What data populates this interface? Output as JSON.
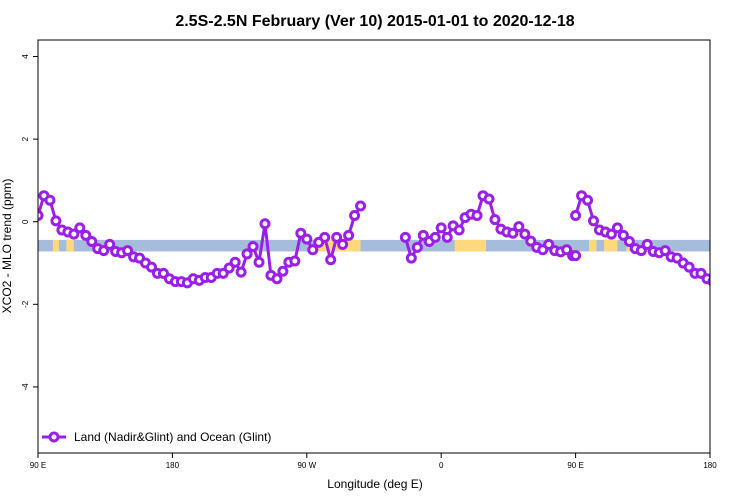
{
  "chart_data": {
    "type": "line",
    "title": "2.5S-2.5N February (Ver 10)   2015-01-01 to 2020-12-18",
    "xlabel": "Longitude (deg E)",
    "ylabel": "XCO2 - MLO trend (ppm)",
    "xlim": [
      90,
      450
    ],
    "ylim": [
      -5.6,
      4.4
    ],
    "x_ticks": [
      {
        "value": 90,
        "label": "90 E"
      },
      {
        "value": 180,
        "label": "180"
      },
      {
        "value": 270,
        "label": "90 W"
      },
      {
        "value": 360,
        "label": "0"
      },
      {
        "value": 450,
        "label": "90 E"
      },
      {
        "value": 540,
        "label": "180"
      }
    ],
    "y_ticks": [
      {
        "value": 4,
        "label": "4"
      },
      {
        "value": 2,
        "label": "2"
      },
      {
        "value": 0,
        "label": "0"
      },
      {
        "value": -2,
        "label": "-2"
      },
      {
        "value": -4,
        "label": "-4"
      }
    ],
    "x_range_display": [
      90,
      540
    ],
    "band": {
      "y_range": [
        -0.72,
        -0.44
      ],
      "ocean_color": "#a5bcdc",
      "land_color": "#fdd97c",
      "land_segments": [
        [
          100,
          104
        ],
        [
          109,
          114
        ],
        [
          276,
          306
        ],
        [
          369,
          390
        ],
        [
          459,
          463
        ],
        [
          472,
          478
        ],
        [
          484,
          486
        ]
      ]
    },
    "series": [
      {
        "name": "Land (Nadir&Glint) and Ocean (Glint)",
        "color": "#9b1fe8",
        "segments": [
          [
            [
              90,
              0.15
            ],
            [
              94,
              0.63
            ],
            [
              98,
              0.52
            ],
            [
              102,
              0.02
            ],
            [
              106,
              -0.2
            ],
            [
              110,
              -0.25
            ],
            [
              114,
              -0.3
            ],
            [
              118,
              -0.15
            ],
            [
              122,
              -0.33
            ],
            [
              126,
              -0.48
            ],
            [
              130,
              -0.65
            ],
            [
              134,
              -0.7
            ],
            [
              138,
              -0.55
            ],
            [
              142,
              -0.72
            ],
            [
              146,
              -0.75
            ],
            [
              150,
              -0.7
            ],
            [
              154,
              -0.85
            ],
            [
              158,
              -0.88
            ],
            [
              162,
              -1.0
            ],
            [
              166,
              -1.1
            ],
            [
              170,
              -1.25
            ],
            [
              174,
              -1.25
            ],
            [
              178,
              -1.38
            ],
            [
              182,
              -1.45
            ],
            [
              186,
              -1.45
            ],
            [
              190,
              -1.48
            ],
            [
              194,
              -1.38
            ],
            [
              198,
              -1.42
            ],
            [
              202,
              -1.35
            ],
            [
              206,
              -1.35
            ],
            [
              210,
              -1.25
            ],
            [
              214,
              -1.25
            ],
            [
              218,
              -1.12
            ],
            [
              222,
              -0.98
            ],
            [
              226,
              -1.22
            ],
            [
              230,
              -0.78
            ],
            [
              234,
              -0.6
            ],
            [
              238,
              -0.98
            ],
            [
              242,
              -0.05
            ],
            [
              246,
              -1.3
            ],
            [
              250,
              -1.38
            ],
            [
              254,
              -1.2
            ],
            [
              258,
              -0.98
            ],
            [
              262,
              -0.95
            ],
            [
              266,
              -0.28
            ],
            [
              270,
              -0.42
            ],
            [
              274,
              -0.68
            ],
            [
              278,
              -0.5
            ],
            [
              282,
              -0.38
            ],
            [
              286,
              -0.92
            ],
            [
              290,
              -0.38
            ],
            [
              294,
              -0.55
            ],
            [
              298,
              -0.33
            ],
            [
              302,
              0.15
            ],
            [
              306,
              0.38
            ]
          ],
          [
            [
              336,
              -0.38
            ],
            [
              340,
              -0.88
            ],
            [
              344,
              -0.62
            ],
            [
              348,
              -0.33
            ],
            [
              352,
              -0.48
            ],
            [
              356,
              -0.38
            ],
            [
              360,
              -0.15
            ],
            [
              364,
              -0.38
            ],
            [
              368,
              -0.1
            ],
            [
              372,
              -0.2
            ],
            [
              376,
              0.1
            ],
            [
              380,
              0.18
            ],
            [
              384,
              0.15
            ],
            [
              388,
              0.63
            ],
            [
              392,
              0.55
            ],
            [
              396,
              0.05
            ],
            [
              400,
              -0.18
            ],
            [
              404,
              -0.25
            ],
            [
              408,
              -0.28
            ],
            [
              412,
              -0.12
            ],
            [
              416,
              -0.3
            ],
            [
              420,
              -0.47
            ],
            [
              424,
              -0.62
            ],
            [
              428,
              -0.68
            ],
            [
              432,
              -0.55
            ],
            [
              436,
              -0.7
            ],
            [
              440,
              -0.73
            ],
            [
              444,
              -0.68
            ],
            [
              448,
              -0.82
            ],
            [
              450,
              -0.82
            ]
          ]
        ]
      }
    ],
    "legend": {
      "placement": "bottom-left"
    },
    "grid": false
  }
}
